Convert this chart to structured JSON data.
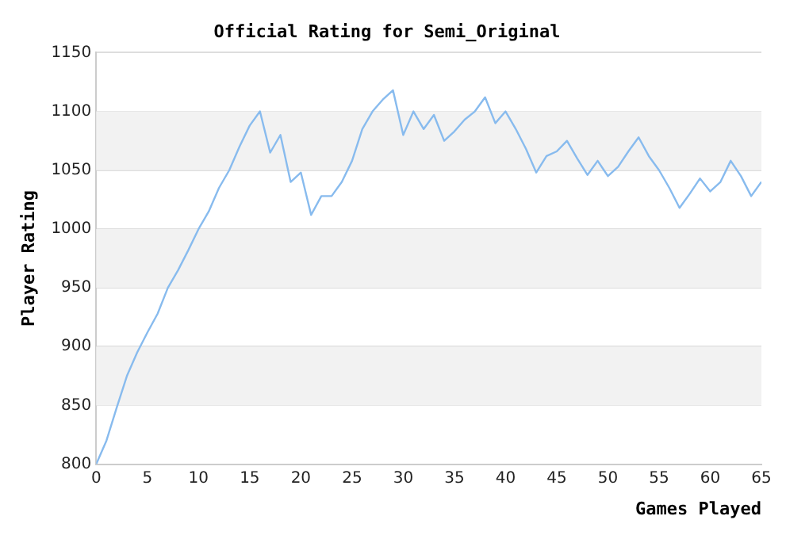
{
  "chart_data": {
    "type": "line",
    "title": "Official Rating for Semi_Original",
    "xlabel": "Games Played",
    "ylabel": "Player Rating",
    "x": [
      0,
      1,
      2,
      3,
      4,
      5,
      6,
      7,
      8,
      9,
      10,
      11,
      12,
      13,
      14,
      15,
      16,
      17,
      18,
      19,
      20,
      21,
      22,
      23,
      24,
      25,
      26,
      27,
      28,
      29,
      30,
      31,
      32,
      33,
      34,
      35,
      36,
      37,
      38,
      39,
      40,
      41,
      42,
      43,
      44,
      45,
      46,
      47,
      48,
      49,
      50,
      51,
      52,
      53,
      54,
      55,
      56,
      57,
      58,
      59,
      60,
      61,
      62,
      63,
      64,
      65
    ],
    "series": [
      {
        "color": "#88bbee",
        "values": [
          800,
          820,
          848,
          875,
          895,
          912,
          928,
          950,
          965,
          982,
          1000,
          1015,
          1035,
          1050,
          1070,
          1088,
          1100,
          1065,
          1080,
          1040,
          1048,
          1012,
          1028,
          1028,
          1040,
          1058,
          1085,
          1100,
          1110,
          1118,
          1080,
          1100,
          1085,
          1097,
          1075,
          1083,
          1093,
          1100,
          1112,
          1090,
          1100,
          1085,
          1068,
          1048,
          1062,
          1066,
          1075,
          1060,
          1046,
          1058,
          1045,
          1053,
          1066,
          1078,
          1062,
          1050,
          1035,
          1018,
          1030,
          1043,
          1032,
          1040,
          1058,
          1045,
          1028,
          1040
        ]
      }
    ],
    "xlim": [
      0,
      65
    ],
    "xticks": [
      0,
      5,
      10,
      15,
      20,
      25,
      30,
      35,
      40,
      45,
      50,
      55,
      60,
      65
    ],
    "ylim": [
      800,
      1150
    ],
    "yticks": [
      800,
      850,
      900,
      950,
      1000,
      1050,
      1100,
      1150
    ],
    "grid": "y",
    "legend": false,
    "marker": "none",
    "line_style": "solid"
  }
}
